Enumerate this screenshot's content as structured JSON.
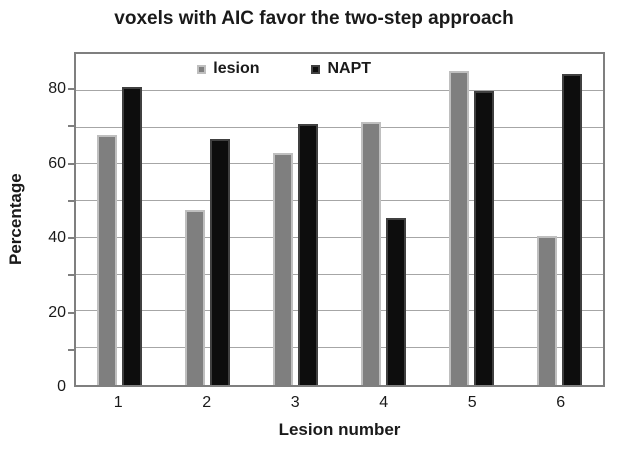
{
  "title": "voxels with AIC favor the two-step approach",
  "chart_data": {
    "type": "bar",
    "categories": [
      "1",
      "2",
      "3",
      "4",
      "5",
      "6"
    ],
    "series": [
      {
        "name": "lesion",
        "values": [
          68,
          47.5,
          63,
          71.5,
          85.5,
          40.5
        ],
        "fill": "#7f7f7f",
        "border": "#bfbfbf"
      },
      {
        "name": "NAPT",
        "values": [
          81,
          67,
          71,
          45.5,
          80,
          84.5
        ],
        "fill": "#0d0d0d",
        "border": "#404040"
      }
    ],
    "title": "voxels with AIC favor the two-step approach",
    "xlabel": "Lesion number",
    "ylabel": "Percentage",
    "ylim": [
      0,
      90
    ],
    "ytick_labels": [
      0,
      20,
      40,
      60,
      80
    ],
    "grid_step": 10,
    "grid": true,
    "legend_position": "top-center-inside",
    "colors": {
      "gridline": "#a6a6a6",
      "frame": "#7f7f7f",
      "text": "#1a1a1a",
      "background": "#ffffff"
    }
  }
}
